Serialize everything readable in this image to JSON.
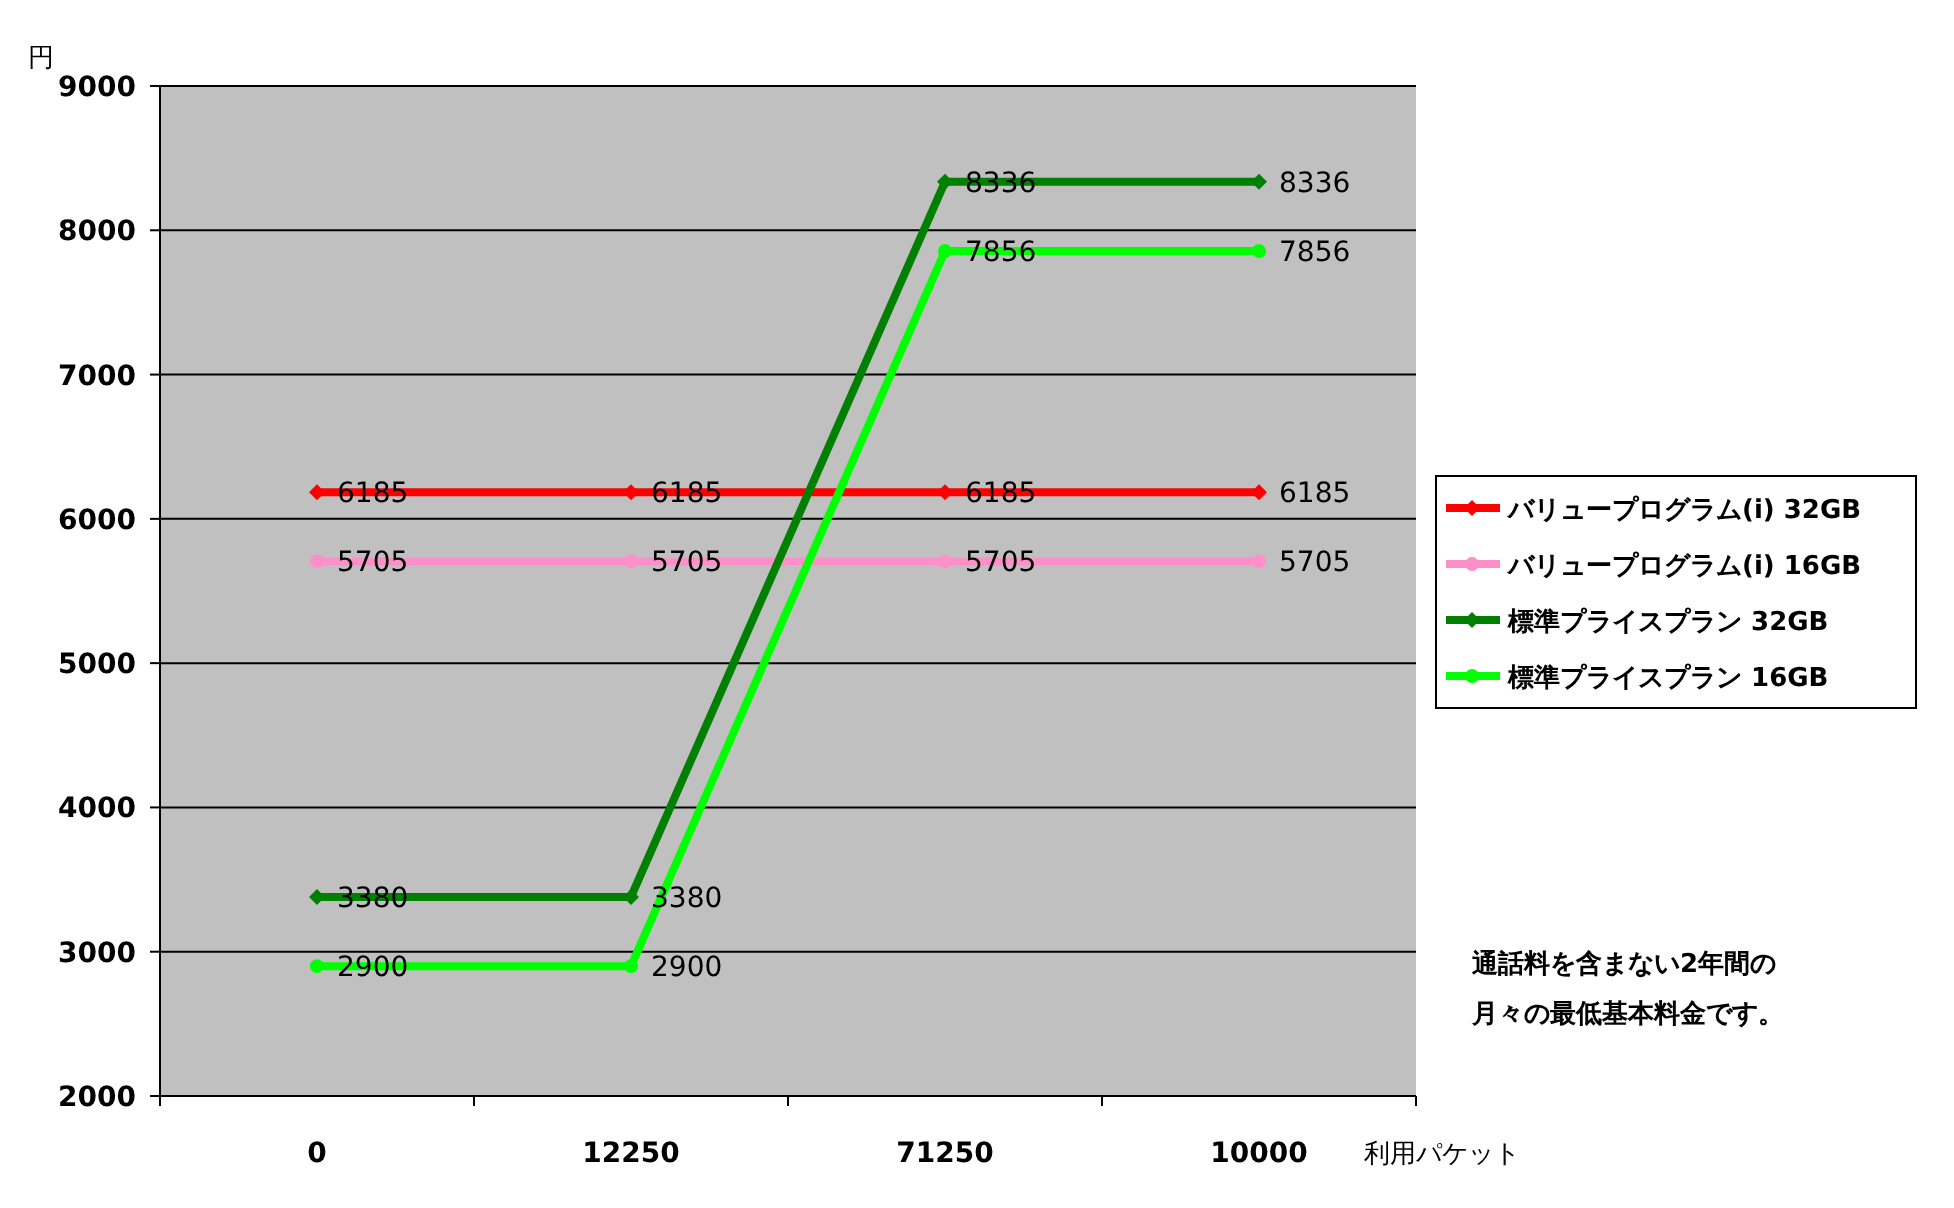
{
  "chart_data": {
    "type": "line",
    "ylabel": "円",
    "xlabel": "利用パケット",
    "categories": [
      "0",
      "12250",
      "71250",
      "10000"
    ],
    "ylim": [
      2000,
      9000
    ],
    "yticks": [
      2000,
      3000,
      4000,
      5000,
      6000,
      7000,
      8000,
      9000
    ],
    "grid": "y",
    "legend": "right",
    "data_labels": true,
    "series": [
      {
        "name": "バリュープログラム(i) 32GB",
        "color": "#ff0000",
        "marker": "diamond",
        "values": [
          6185,
          6185,
          6185,
          6185
        ]
      },
      {
        "name": "バリュープログラム(i) 16GB",
        "color": "#ff8fc8",
        "marker": "circle",
        "values": [
          5705,
          5705,
          5705,
          5705
        ]
      },
      {
        "name": "標準プライスプラン 32GB",
        "color": "#008000",
        "marker": "diamond",
        "values": [
          3380,
          3380,
          8336,
          8336
        ]
      },
      {
        "name": "標準プライスプラン 16GB",
        "color": "#00ff00",
        "marker": "circle",
        "values": [
          2900,
          2900,
          7856,
          7856
        ]
      }
    ],
    "annotations": [
      "通話料を含まない2年間の",
      "月々の最低基本料金です。"
    ]
  }
}
